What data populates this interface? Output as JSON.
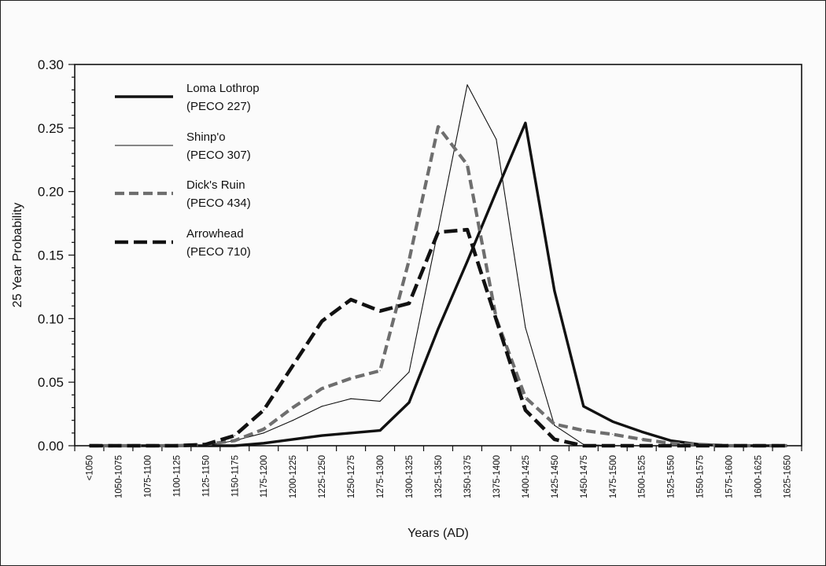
{
  "chart_data": {
    "type": "line",
    "title": "",
    "xlabel": "Years (AD)",
    "ylabel": "25 Year Probability",
    "ylim": [
      0,
      0.3
    ],
    "yticks": [
      "0.00",
      "0.05",
      "0.10",
      "0.15",
      "0.20",
      "0.25",
      "0.30"
    ],
    "grid": false,
    "legend_position": "top-left",
    "categories": [
      "<1050",
      "1050-1075",
      "1075-1100",
      "1100-1125",
      "1125-1150",
      "1150-1175",
      "1175-1200",
      "1200-1225",
      "1225-1250",
      "1250-1275",
      "1275-1300",
      "1300-1325",
      "1325-1350",
      "1350-1375",
      "1375-1400",
      "1400-1425",
      "1425-1450",
      "1450-1475",
      "1475-1500",
      "1500-1525",
      "1525-1550",
      "1550-1575",
      "1575-1600",
      "1600-1625",
      "1625-1650"
    ],
    "series": [
      {
        "name": "Loma Lothrop",
        "sub": "(PECO 227)",
        "style": "thick-solid",
        "color": "#111111",
        "values": [
          0,
          0,
          0,
          0,
          0,
          0,
          0.002,
          0.005,
          0.008,
          0.01,
          0.012,
          0.034,
          0.092,
          0.145,
          0.2,
          0.254,
          0.122,
          0.031,
          0.019,
          0.011,
          0.004,
          0.001,
          0,
          0,
          0
        ]
      },
      {
        "name": "Shinp'o",
        "sub": "(PECO 307)",
        "style": "thin-solid",
        "color": "#111111",
        "values": [
          0,
          0,
          0,
          0,
          0,
          0.004,
          0.01,
          0.02,
          0.031,
          0.037,
          0.035,
          0.058,
          0.17,
          0.284,
          0.241,
          0.093,
          0.016,
          0.001,
          0,
          0,
          0,
          0,
          0,
          0,
          0
        ]
      },
      {
        "name": "Dick's Ruin",
        "sub": "(PECO 434)",
        "style": "gray-dashed",
        "color": "#6e6e6e",
        "values": [
          0,
          0,
          0,
          0,
          0.001,
          0.004,
          0.013,
          0.03,
          0.045,
          0.053,
          0.059,
          0.146,
          0.251,
          0.221,
          0.1,
          0.038,
          0.017,
          0.012,
          0.009,
          0.005,
          0.002,
          0.001,
          0,
          0,
          0
        ]
      },
      {
        "name": "Arrowhead",
        "sub": "(PECO 710)",
        "style": "thick-dashed",
        "color": "#111111",
        "values": [
          0,
          0,
          0,
          0,
          0.001,
          0.008,
          0.028,
          0.063,
          0.098,
          0.115,
          0.106,
          0.112,
          0.168,
          0.17,
          0.099,
          0.028,
          0.005,
          0,
          0,
          0,
          0,
          0,
          0,
          0,
          0
        ]
      }
    ]
  }
}
